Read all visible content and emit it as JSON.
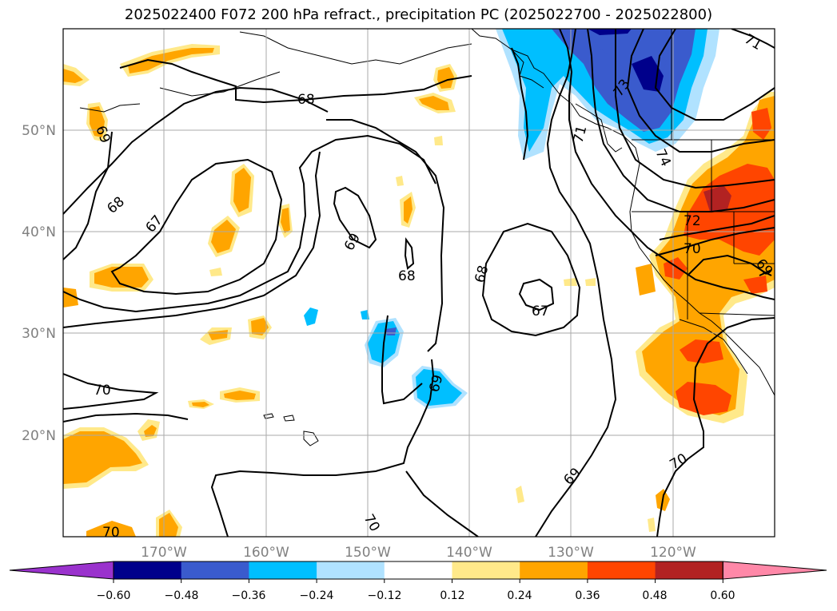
{
  "title": "2025022400 F072 200 hPa refract., precipitation PC (2025022700 - 2025022800)",
  "map": {
    "lat_labels": [
      "50°N",
      "40°N",
      "30°N",
      "20°N"
    ],
    "lon_labels": [
      "170°W",
      "160°W",
      "150°W",
      "140°W",
      "130°W",
      "120°W"
    ],
    "contour_labels": [
      "68",
      "68",
      "67",
      "69",
      "69",
      "68",
      "68",
      "67",
      "70",
      "70",
      "69",
      "69",
      "70",
      "70",
      "72",
      "70",
      "71",
      "73",
      "74",
      "71",
      "69"
    ]
  },
  "colorbar": {
    "ticks": [
      "−0.60",
      "−0.48",
      "−0.36",
      "−0.24",
      "−0.12",
      "0.12",
      "0.24",
      "0.36",
      "0.48",
      "0.60"
    ],
    "colors": [
      "#9a32cd",
      "#00008b",
      "#3a5bcd",
      "#00bfff",
      "#b0e2ff",
      "#ffffff",
      "#ffe98a",
      "#ffa500",
      "#ff4500",
      "#b22222",
      "#ff88a8"
    ]
  }
}
